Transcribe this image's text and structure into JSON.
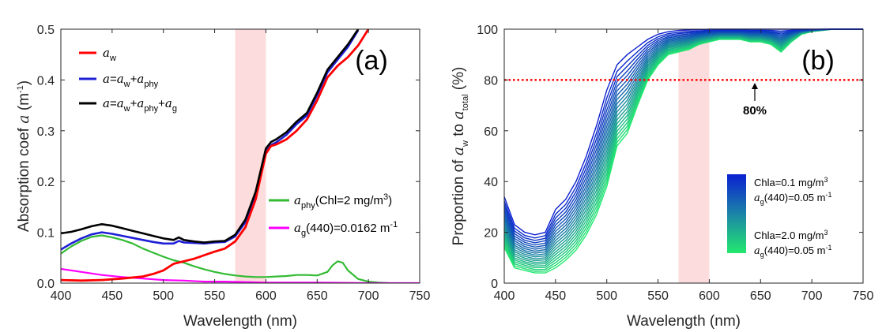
{
  "chart_data": [
    {
      "type": "line",
      "panel_label": "(a)",
      "xlabel": "Wavelength (nm)",
      "ylabel": "Absorption coef a (m-1)",
      "xlim": [
        400,
        750
      ],
      "ylim": [
        0,
        0.5
      ],
      "xticks": [
        "400",
        "450",
        "500",
        "550",
        "600",
        "650",
        "700",
        "750"
      ],
      "yticks": [
        "0.0",
        "0.1",
        "0.2",
        "0.3",
        "0.4",
        "0.5"
      ],
      "shaded_band": [
        570,
        600
      ],
      "colors": {
        "aw": "#ff0000",
        "a_phy_total": "#1f1fd6",
        "a_total": "#000000",
        "a_phy": "#33bb33",
        "a_g": "#ff00ff",
        "band": "#fcdcdc"
      },
      "legend": {
        "aw": "a_w",
        "a_phy_total": "a=a_w+a_phy",
        "a_total": "a=a_w+a_phy+a_g",
        "a_phy": "a_phy(Chl=2 mg/m3)",
        "a_g": "a_g(440)=0.0162 m-1"
      },
      "series": [
        {
          "key": "a_total",
          "x": [
            400,
            410,
            420,
            430,
            440,
            450,
            460,
            470,
            480,
            490,
            500,
            510,
            515,
            520,
            530,
            540,
            550,
            560,
            570,
            580,
            590,
            595,
            600,
            605,
            610,
            620,
            630,
            640,
            650,
            660,
            670,
            680,
            690
          ],
          "y": [
            0.098,
            0.101,
            0.106,
            0.112,
            0.116,
            0.113,
            0.108,
            0.103,
            0.098,
            0.093,
            0.088,
            0.085,
            0.09,
            0.085,
            0.082,
            0.08,
            0.082,
            0.083,
            0.095,
            0.125,
            0.18,
            0.222,
            0.265,
            0.278,
            0.283,
            0.297,
            0.318,
            0.335,
            0.375,
            0.42,
            0.445,
            0.47,
            0.5
          ]
        },
        {
          "key": "a_phy_total",
          "x": [
            400,
            410,
            420,
            430,
            440,
            450,
            460,
            470,
            480,
            490,
            500,
            510,
            515,
            520,
            530,
            540,
            550,
            560,
            570,
            580,
            590,
            595,
            600,
            605,
            610,
            620,
            630,
            640,
            650,
            660,
            670,
            680,
            690
          ],
          "y": [
            0.066,
            0.078,
            0.088,
            0.096,
            0.1,
            0.097,
            0.093,
            0.089,
            0.085,
            0.081,
            0.078,
            0.078,
            0.083,
            0.08,
            0.079,
            0.078,
            0.08,
            0.081,
            0.092,
            0.12,
            0.173,
            0.215,
            0.258,
            0.272,
            0.277,
            0.292,
            0.313,
            0.33,
            0.37,
            0.415,
            0.44,
            0.465,
            0.498
          ]
        },
        {
          "key": "aw",
          "x": [
            400,
            420,
            440,
            460,
            480,
            490,
            500,
            510,
            520,
            530,
            540,
            550,
            560,
            570,
            580,
            590,
            595,
            600,
            605,
            610,
            620,
            630,
            640,
            650,
            660,
            670,
            680,
            690,
            700
          ],
          "y": [
            0.006,
            0.005,
            0.006,
            0.009,
            0.013,
            0.018,
            0.025,
            0.038,
            0.043,
            0.048,
            0.055,
            0.062,
            0.068,
            0.082,
            0.11,
            0.165,
            0.21,
            0.255,
            0.27,
            0.273,
            0.283,
            0.3,
            0.322,
            0.36,
            0.405,
            0.428,
            0.445,
            0.468,
            0.5
          ]
        },
        {
          "key": "a_phy",
          "x": [
            400,
            410,
            420,
            430,
            440,
            450,
            460,
            470,
            480,
            490,
            500,
            510,
            520,
            530,
            540,
            550,
            560,
            570,
            580,
            590,
            600,
            610,
            620,
            630,
            640,
            650,
            660,
            665,
            670,
            675,
            680,
            690,
            700,
            710,
            720
          ],
          "y": [
            0.058,
            0.072,
            0.083,
            0.091,
            0.094,
            0.09,
            0.085,
            0.078,
            0.068,
            0.06,
            0.052,
            0.045,
            0.04,
            0.033,
            0.027,
            0.022,
            0.018,
            0.015,
            0.013,
            0.012,
            0.012,
            0.013,
            0.014,
            0.016,
            0.016,
            0.015,
            0.022,
            0.035,
            0.043,
            0.04,
            0.025,
            0.008,
            0.003,
            0.001,
            0.0
          ]
        },
        {
          "key": "a_g",
          "x": [
            400,
            420,
            440,
            460,
            480,
            500,
            520,
            540,
            560,
            580,
            600,
            650,
            700,
            750
          ],
          "y": [
            0.028,
            0.022,
            0.016,
            0.012,
            0.009,
            0.006,
            0.005,
            0.003,
            0.003,
            0.002,
            0.001,
            0.001,
            0.0,
            0.0
          ]
        }
      ]
    },
    {
      "type": "line",
      "panel_label": "(b)",
      "xlabel": "Wavelength (nm)",
      "ylabel": "Proportion of a_w to a_total (%)",
      "xlim": [
        400,
        750
      ],
      "ylim": [
        0,
        100
      ],
      "xticks": [
        "400",
        "450",
        "500",
        "550",
        "600",
        "650",
        "700",
        "750"
      ],
      "yticks": [
        "0",
        "20",
        "40",
        "60",
        "80",
        "100"
      ],
      "shaded_band": [
        570,
        600
      ],
      "threshold": {
        "y": 80,
        "label": "80%",
        "arrow_x": 650,
        "color": "#ff0000"
      },
      "colorbar": {
        "top_label_1": "Chla=0.1 mg/m3",
        "top_label_2": "a_g(440)=0.05 m-1",
        "bottom_label_1": "Chla=2.0 mg/m3",
        "bottom_label_2": "a_g(440)=0.05 m-1",
        "color_top": "#0a1fd0",
        "color_bottom": "#22e86e"
      },
      "series_count": 20,
      "chl_range": [
        0.1,
        2.0
      ],
      "series_extremes": {
        "x": [
          400,
          410,
          420,
          430,
          440,
          450,
          460,
          470,
          480,
          490,
          500,
          510,
          520,
          530,
          540,
          550,
          560,
          570,
          580,
          590,
          600,
          610,
          620,
          630,
          640,
          650,
          660,
          670,
          680,
          690,
          700,
          710,
          720,
          730,
          740,
          750
        ],
        "chl_0_1": [
          34,
          23,
          20,
          19,
          20,
          29,
          33,
          40,
          50,
          62,
          76,
          86,
          90,
          93,
          96,
          98,
          99,
          99.5,
          99.7,
          99.8,
          100,
          100,
          100,
          100,
          100,
          100,
          100,
          100,
          100,
          100,
          100,
          100,
          100,
          100,
          100,
          100
        ],
        "chl_2_0": [
          14,
          6,
          5,
          4,
          4,
          6,
          9,
          13,
          19,
          27,
          38,
          54,
          59,
          70,
          80,
          86,
          90,
          91,
          92,
          94,
          95,
          96,
          96,
          96,
          95,
          95,
          94,
          91,
          95,
          98,
          99,
          99.5,
          100,
          100,
          100,
          100
        ]
      }
    }
  ]
}
